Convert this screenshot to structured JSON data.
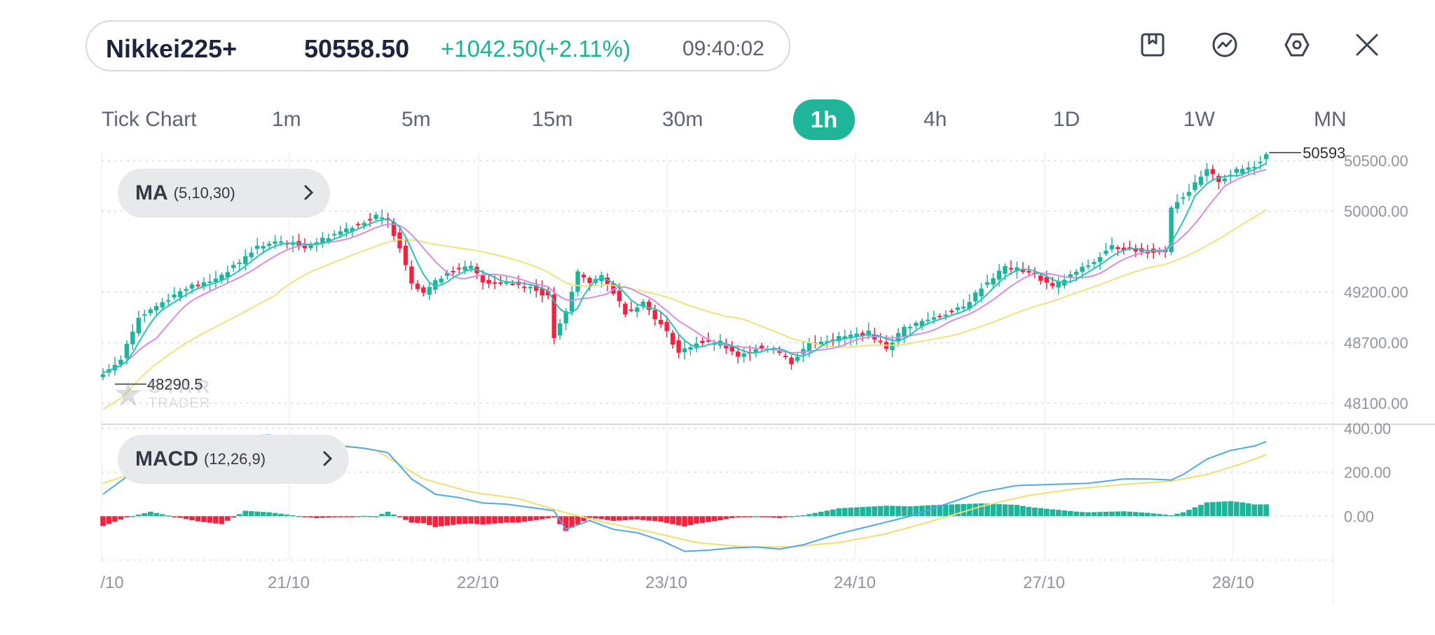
{
  "quote": {
    "symbol": "Nikkei225+",
    "price": "50558.50",
    "change": "+1042.50(+2.11%)",
    "time": "09:40:02"
  },
  "toolbar": {
    "icons": [
      "bookmark-icon",
      "chart-trend-icon",
      "settings-hex-icon",
      "close-icon"
    ]
  },
  "timeframes": [
    {
      "label": "Tick Chart"
    },
    {
      "label": "1m"
    },
    {
      "label": "5m"
    },
    {
      "label": "15m"
    },
    {
      "label": "30m"
    },
    {
      "label": "1h"
    },
    {
      "label": "4h"
    },
    {
      "label": "1D"
    },
    {
      "label": "1W"
    },
    {
      "label": "MN"
    }
  ],
  "active_timeframe": "1h",
  "indicators": {
    "ma": {
      "name": "MA",
      "params": "(5,10,30)"
    },
    "macd": {
      "name": "MACD",
      "params": "(12,26,9)"
    }
  },
  "watermark": {
    "line1": "STAR",
    "line2": "TRADER"
  },
  "colors": {
    "up": "#1cb59b",
    "down": "#f6213f",
    "ma5": "#22c6b8",
    "ma10": "#d98ae6",
    "ma30": "#f3e27b",
    "macd_line": "#4ea8f0",
    "signal_line": "#f1de6b",
    "accent": "#20b49a"
  },
  "chart_data": [
    {
      "type": "candlestick",
      "price_axis_labels": [
        "50500.00",
        "50000.00",
        "49200.00",
        "48700.00",
        "48100.00"
      ],
      "price_levels": [
        50500,
        50000,
        49200,
        48700,
        48100
      ],
      "ylim": [
        47900,
        50600
      ],
      "date_labels": [
        "/10",
        "21/10",
        "22/10",
        "23/10",
        "24/10",
        "27/10",
        "28/10"
      ],
      "annotations": {
        "high_label": "50593",
        "high_value": 50593,
        "low_label": "48290.5",
        "low_value": 48290.5
      },
      "grid": true,
      "close_keypoints": [
        [
          0,
          48400
        ],
        [
          3,
          48550
        ],
        [
          6,
          48950
        ],
        [
          10,
          49100
        ],
        [
          14,
          49250
        ],
        [
          18,
          49300
        ],
        [
          22,
          49450
        ],
        [
          26,
          49650
        ],
        [
          30,
          49700
        ],
        [
          34,
          49650
        ],
        [
          38,
          49750
        ],
        [
          42,
          49850
        ],
        [
          46,
          49950
        ],
        [
          48,
          49900
        ],
        [
          50,
          49650
        ],
        [
          52,
          49300
        ],
        [
          54,
          49200
        ],
        [
          58,
          49400
        ],
        [
          62,
          49450
        ],
        [
          64,
          49300
        ],
        [
          68,
          49300
        ],
        [
          72,
          49250
        ],
        [
          75,
          49150
        ],
        [
          76,
          48750
        ],
        [
          78,
          49000
        ],
        [
          80,
          49400
        ],
        [
          82,
          49300
        ],
        [
          84,
          49350
        ],
        [
          86,
          49200
        ],
        [
          88,
          49000
        ],
        [
          91,
          49100
        ],
        [
          93,
          48950
        ],
        [
          95,
          48800
        ],
        [
          97,
          48600
        ],
        [
          100,
          48700
        ],
        [
          104,
          48700
        ],
        [
          107,
          48550
        ],
        [
          110,
          48650
        ],
        [
          113,
          48650
        ],
        [
          116,
          48500
        ],
        [
          119,
          48700
        ],
        [
          124,
          48750
        ],
        [
          129,
          48800
        ],
        [
          132,
          48650
        ],
        [
          135,
          48850
        ],
        [
          140,
          48950
        ],
        [
          145,
          49050
        ],
        [
          148,
          49250
        ],
        [
          152,
          49450
        ],
        [
          156,
          49400
        ],
        [
          160,
          49250
        ],
        [
          164,
          49400
        ],
        [
          167,
          49500
        ],
        [
          170,
          49650
        ],
        [
          175,
          49600
        ],
        [
          179,
          49600
        ],
        [
          180,
          50050
        ],
        [
          183,
          50200
        ],
        [
          186,
          50400
        ],
        [
          188,
          50300
        ],
        [
          191,
          50400
        ],
        [
          194,
          50450
        ],
        [
          196,
          50560
        ]
      ],
      "series": [
        {
          "name": "MA",
          "params": "5"
        },
        {
          "name": "MA",
          "params": "10"
        },
        {
          "name": "MA",
          "params": "30"
        }
      ]
    },
    {
      "type": "bar+line",
      "indicator": "MACD",
      "axis_labels": [
        "400.00",
        "200.00",
        "0.00"
      ],
      "axis_levels": [
        400,
        200,
        0
      ],
      "ylim": [
        -200,
        400
      ],
      "grid": true,
      "macd_keypoints": [
        [
          0,
          100
        ],
        [
          4,
          180
        ],
        [
          8,
          245
        ],
        [
          12,
          255
        ],
        [
          16,
          265
        ],
        [
          20,
          285
        ],
        [
          24,
          365
        ],
        [
          28,
          370
        ],
        [
          32,
          350
        ],
        [
          36,
          330
        ],
        [
          40,
          320
        ],
        [
          44,
          310
        ],
        [
          48,
          290
        ],
        [
          52,
          170
        ],
        [
          56,
          100
        ],
        [
          60,
          85
        ],
        [
          64,
          60
        ],
        [
          68,
          55
        ],
        [
          72,
          40
        ],
        [
          76,
          25
        ],
        [
          78,
          -60
        ],
        [
          82,
          -20
        ],
        [
          86,
          -60
        ],
        [
          90,
          -75
        ],
        [
          94,
          -110
        ],
        [
          98,
          -160
        ],
        [
          102,
          -155
        ],
        [
          106,
          -145
        ],
        [
          110,
          -140
        ],
        [
          114,
          -150
        ],
        [
          118,
          -130
        ],
        [
          124,
          -80
        ],
        [
          130,
          -40
        ],
        [
          136,
          0
        ],
        [
          142,
          55
        ],
        [
          148,
          110
        ],
        [
          154,
          140
        ],
        [
          160,
          145
        ],
        [
          166,
          150
        ],
        [
          172,
          170
        ],
        [
          176,
          170
        ],
        [
          180,
          165
        ],
        [
          182,
          190
        ],
        [
          186,
          260
        ],
        [
          190,
          300
        ],
        [
          194,
          320
        ],
        [
          196,
          340
        ]
      ],
      "signal_keypoints": [
        [
          0,
          150
        ],
        [
          10,
          240
        ],
        [
          20,
          325
        ],
        [
          28,
          350
        ],
        [
          36,
          340
        ],
        [
          46,
          300
        ],
        [
          54,
          170
        ],
        [
          62,
          110
        ],
        [
          70,
          80
        ],
        [
          78,
          15
        ],
        [
          84,
          -25
        ],
        [
          92,
          -70
        ],
        [
          100,
          -120
        ],
        [
          108,
          -140
        ],
        [
          116,
          -140
        ],
        [
          124,
          -120
        ],
        [
          132,
          -80
        ],
        [
          140,
          -20
        ],
        [
          148,
          45
        ],
        [
          156,
          95
        ],
        [
          164,
          125
        ],
        [
          172,
          145
        ],
        [
          180,
          160
        ],
        [
          186,
          190
        ],
        [
          192,
          240
        ],
        [
          196,
          280
        ]
      ]
    }
  ]
}
